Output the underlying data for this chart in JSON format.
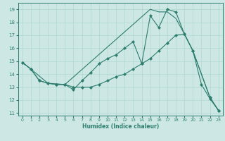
{
  "xlabel": "Humidex (Indice chaleur)",
  "bg_color": "#cde8e4",
  "grid_color": "#b0d8d0",
  "line_color": "#2d7d6e",
  "xlim": [
    -0.5,
    23.5
  ],
  "ylim": [
    10.8,
    19.5
  ],
  "xticks": [
    0,
    1,
    2,
    3,
    4,
    5,
    6,
    7,
    8,
    9,
    10,
    11,
    12,
    13,
    14,
    15,
    16,
    17,
    18,
    19,
    20,
    21,
    22,
    23
  ],
  "yticks": [
    11,
    12,
    13,
    14,
    15,
    16,
    17,
    18,
    19
  ],
  "line1_x": [
    0,
    1,
    2,
    3,
    4,
    5,
    6,
    7,
    8,
    9,
    10,
    11,
    12,
    13,
    14,
    15,
    16,
    17,
    18,
    19,
    20,
    22,
    23
  ],
  "line1_y": [
    14.9,
    14.4,
    13.5,
    13.3,
    13.2,
    13.2,
    12.8,
    13.5,
    14.1,
    14.8,
    15.2,
    15.5,
    16.0,
    16.5,
    14.8,
    18.5,
    17.6,
    19.0,
    18.8,
    17.1,
    15.8,
    12.2,
    11.2
  ],
  "line2_x": [
    0,
    1,
    2,
    3,
    4,
    5,
    6,
    7,
    8,
    9,
    10,
    11,
    12,
    13,
    14,
    15,
    16,
    17,
    18,
    19,
    20,
    21,
    22,
    23
  ],
  "line2_y": [
    14.9,
    14.4,
    13.5,
    13.3,
    13.2,
    13.2,
    13.0,
    13.0,
    13.0,
    13.2,
    13.5,
    13.8,
    14.0,
    14.4,
    14.8,
    15.2,
    15.8,
    16.4,
    17.0,
    17.1,
    15.8,
    13.2,
    12.1,
    11.2
  ],
  "line3_x": [
    0,
    1,
    3,
    5,
    15,
    16,
    17,
    18,
    19,
    20,
    22,
    23
  ],
  "line3_y": [
    14.9,
    14.4,
    13.3,
    13.2,
    19.0,
    18.8,
    18.8,
    18.3,
    17.1,
    15.8,
    12.2,
    11.2
  ]
}
